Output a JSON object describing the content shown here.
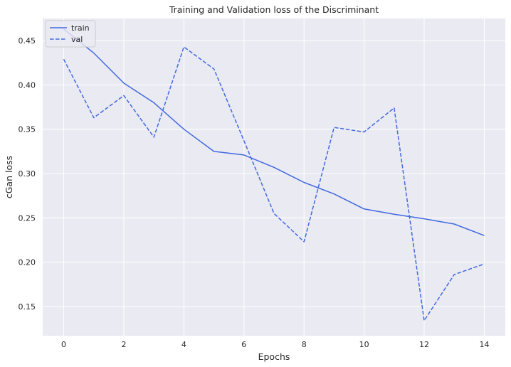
{
  "chart_data": {
    "type": "line",
    "title": "Training and Validation loss of the Discriminant",
    "xlabel": "Epochs",
    "ylabel": "cGan loss",
    "xlim": [
      -0.7,
      14.7
    ],
    "ylim": [
      0.117,
      0.475
    ],
    "xticks": [
      0,
      2,
      4,
      6,
      8,
      10,
      12,
      14
    ],
    "yticks": [
      0.15,
      0.2,
      0.25,
      0.3,
      0.35,
      0.4,
      0.45
    ],
    "ytick_labels": [
      "0.15",
      "0.20",
      "0.25",
      "0.30",
      "0.35",
      "0.40",
      "0.45"
    ],
    "grid": true,
    "legend_position": "upper left",
    "x": [
      0,
      1,
      2,
      3,
      4,
      5,
      6,
      7,
      8,
      9,
      10,
      11,
      12,
      13,
      14
    ],
    "series": [
      {
        "name": "train",
        "style": "solid",
        "color": "#4169e1",
        "values": [
          0.463,
          0.436,
          0.402,
          0.38,
          0.35,
          0.325,
          0.321,
          0.307,
          0.29,
          0.277,
          0.26,
          0.254,
          0.249,
          0.243,
          0.23
        ]
      },
      {
        "name": "val",
        "style": "dashed",
        "color": "#4169e1",
        "values": [
          0.429,
          0.363,
          0.388,
          0.341,
          0.443,
          0.418,
          0.337,
          0.255,
          0.223,
          0.352,
          0.347,
          0.374,
          0.134,
          0.186,
          0.198
        ]
      }
    ],
    "background_color": "#eaeaf2",
    "grid_color": "#ffffff"
  }
}
